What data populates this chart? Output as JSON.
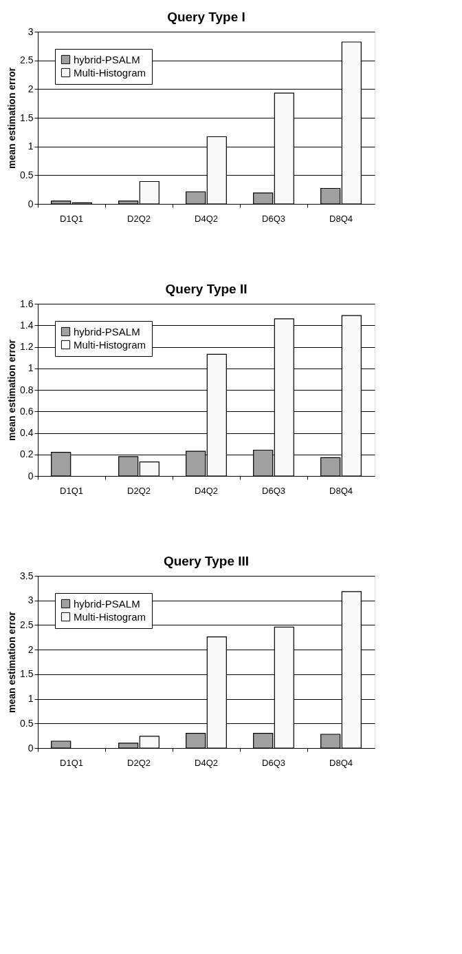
{
  "chart_data": [
    {
      "type": "bar",
      "title": "Query Type I",
      "ylabel": "mean estimation error",
      "categories": [
        "D1Q1",
        "D2Q2",
        "D4Q2",
        "D6Q3",
        "D8Q4"
      ],
      "ylim": [
        0,
        3
      ],
      "yticks": [
        0,
        0.5,
        1,
        1.5,
        2,
        2.5,
        3
      ],
      "grid": "y",
      "legend": "top left",
      "series": [
        {
          "name": "hybrid-PSALM",
          "color": "#a0a0a0",
          "values": [
            0.05,
            0.05,
            0.21,
            0.19,
            0.27
          ]
        },
        {
          "name": "Multi-Histogram",
          "color": "#f8f8f8",
          "values": [
            0.02,
            0.39,
            1.17,
            1.93,
            2.82
          ]
        }
      ]
    },
    {
      "type": "bar",
      "title": "Query Type II",
      "ylabel": "mean estimation error",
      "categories": [
        "D1Q1",
        "D2Q2",
        "D4Q2",
        "D6Q3",
        "D8Q4"
      ],
      "ylim": [
        0,
        1.6
      ],
      "yticks": [
        0,
        0.2,
        0.4,
        0.6,
        0.8,
        1,
        1.2,
        1.4,
        1.6
      ],
      "grid": "y",
      "legend": "top left",
      "series": [
        {
          "name": "hybrid-PSALM",
          "color": "#a0a0a0",
          "values": [
            0.22,
            0.18,
            0.23,
            0.24,
            0.17
          ]
        },
        {
          "name": "Multi-Histogram",
          "color": "#f8f8f8",
          "values": [
            null,
            0.13,
            1.13,
            1.46,
            1.49
          ]
        }
      ]
    },
    {
      "type": "bar",
      "title": "Query Type III",
      "ylabel": "mean estimation error",
      "categories": [
        "D1Q1",
        "D2Q2",
        "D4Q2",
        "D6Q3",
        "D8Q4"
      ],
      "ylim": [
        0,
        3.5
      ],
      "yticks": [
        0,
        0.5,
        1,
        1.5,
        2,
        2.5,
        3,
        3.5
      ],
      "grid": "y",
      "legend": "top left",
      "series": [
        {
          "name": "hybrid-PSALM",
          "color": "#a0a0a0",
          "values": [
            0.14,
            0.1,
            0.3,
            0.3,
            0.28
          ]
        },
        {
          "name": "Multi-Histogram",
          "color": "#f8f8f8",
          "values": [
            null,
            0.24,
            2.26,
            2.46,
            3.18
          ]
        }
      ]
    }
  ]
}
